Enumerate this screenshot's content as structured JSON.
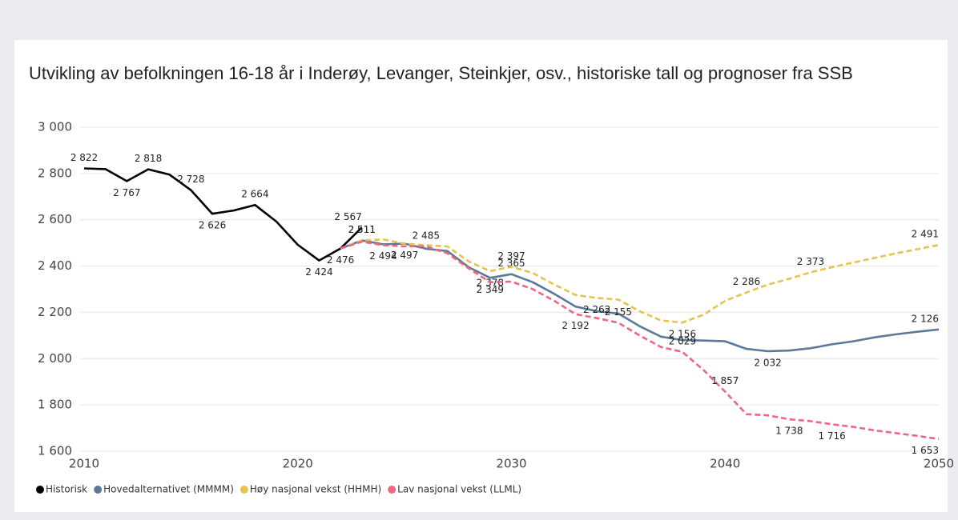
{
  "chart_data": {
    "type": "line",
    "title": "Utvikling av befolkningen 16-18 år i Inderøy, Levanger, Steinkjer, osv., historiske tall og prognoser fra SSB",
    "xlim": [
      2010,
      2050
    ],
    "xticks": [
      2010,
      2020,
      2030,
      2040,
      2050
    ],
    "ylim": [
      1600,
      3000
    ],
    "yticks": [
      {
        "value": 1600,
        "label": "1 600"
      },
      {
        "value": 1800,
        "label": "1 800"
      },
      {
        "value": 2000,
        "label": "2 000"
      },
      {
        "value": 2200,
        "label": "2 200"
      },
      {
        "value": 2400,
        "label": "2 400"
      },
      {
        "value": 2600,
        "label": "2 600"
      },
      {
        "value": 2800,
        "label": "2 800"
      },
      {
        "value": 3000,
        "label": "3 000"
      }
    ],
    "grid": true,
    "legend": "bottom-left",
    "series": [
      {
        "name": "Historisk",
        "color": "#000000",
        "dashed": false,
        "x": [
          2010,
          2011,
          2012,
          2013,
          2014,
          2015,
          2016,
          2017,
          2018,
          2019,
          2020,
          2021,
          2022,
          2023
        ],
        "values": [
          2822,
          2819,
          2767,
          2818,
          2795,
          2728,
          2626,
          2640,
          2664,
          2592,
          2492,
          2424,
          2476,
          2567
        ],
        "value_labels": [
          "2 822",
          null,
          "2 767",
          "2 818",
          null,
          "2 728",
          "2 626",
          null,
          "2 664",
          null,
          null,
          "2 424",
          "2 476",
          "2 567"
        ]
      },
      {
        "name": "Hovedalternativet (MMMM)",
        "color": "#5b7a99",
        "dashed": false,
        "x": [
          2022,
          2023,
          2024,
          2025,
          2026,
          2027,
          2028,
          2029,
          2030,
          2031,
          2032,
          2033,
          2034,
          2035,
          2036,
          2037,
          2038,
          2039,
          2040,
          2041,
          2042,
          2043,
          2044,
          2045,
          2046,
          2047,
          2048,
          2049,
          2050
        ],
        "values": [
          2476,
          2511,
          2494,
          2497,
          2475,
          2465,
          2395,
          2349,
          2365,
          2330,
          2280,
          2225,
          2205,
          2195,
          2140,
          2095,
          2080,
          2078,
          2075,
          2042,
          2032,
          2035,
          2045,
          2062,
          2075,
          2092,
          2105,
          2116,
          2126
        ],
        "value_labels": [
          null,
          "2 511",
          "2 494",
          null,
          null,
          null,
          null,
          "2 349",
          "2 365",
          null,
          null,
          null,
          null,
          null,
          null,
          null,
          null,
          null,
          null,
          null,
          "2 032",
          null,
          null,
          null,
          null,
          null,
          null,
          null,
          "2 126"
        ]
      },
      {
        "name": "Høy nasjonal vekst (HHMH)",
        "color": "#e8c14e",
        "dashed": true,
        "x": [
          2022,
          2023,
          2024,
          2025,
          2026,
          2027,
          2028,
          2029,
          2030,
          2031,
          2032,
          2033,
          2034,
          2035,
          2036,
          2037,
          2038,
          2039,
          2040,
          2041,
          2042,
          2043,
          2044,
          2045,
          2046,
          2047,
          2048,
          2049,
          2050
        ],
        "values": [
          2476,
          2511,
          2515,
          2497,
          2490,
          2485,
          2420,
          2378,
          2397,
          2370,
          2320,
          2275,
          2262,
          2255,
          2205,
          2165,
          2156,
          2190,
          2250,
          2286,
          2320,
          2345,
          2373,
          2395,
          2415,
          2435,
          2455,
          2473,
          2491
        ],
        "value_labels": [
          null,
          "2 511",
          null,
          "2 497",
          null,
          null,
          null,
          "2 378",
          "2 397",
          null,
          null,
          null,
          "2 262",
          null,
          null,
          null,
          "2 156",
          null,
          null,
          "2 286",
          null,
          null,
          "2 373",
          null,
          null,
          null,
          null,
          null,
          "2 491"
        ]
      },
      {
        "name": "Lav nasjonal vekst (LLML)",
        "color": "#f0657f",
        "dashed": true,
        "x": [
          2022,
          2023,
          2024,
          2025,
          2026,
          2027,
          2028,
          2029,
          2030,
          2031,
          2032,
          2033,
          2034,
          2035,
          2036,
          2037,
          2038,
          2039,
          2040,
          2041,
          2042,
          2043,
          2044,
          2045,
          2046,
          2047,
          2048,
          2049,
          2050
        ],
        "values": [
          2476,
          2505,
          2490,
          2485,
          2485,
          2455,
          2390,
          2330,
          2333,
          2300,
          2250,
          2192,
          2175,
          2155,
          2100,
          2050,
          2029,
          1950,
          1857,
          1760,
          1755,
          1738,
          1730,
          1716,
          1705,
          1690,
          1678,
          1666,
          1653
        ],
        "value_labels": [
          null,
          null,
          null,
          null,
          "2 485",
          null,
          null,
          null,
          null,
          null,
          null,
          "2 192",
          null,
          "2 155",
          null,
          null,
          "2 029",
          null,
          "1 857",
          null,
          null,
          "1 738",
          null,
          "1 716",
          null,
          null,
          null,
          null,
          "1 653"
        ]
      }
    ]
  }
}
